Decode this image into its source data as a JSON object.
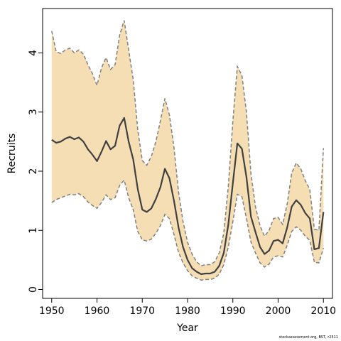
{
  "chart_data": {
    "type": "area",
    "xlabel": "Year",
    "ylabel": "Recruits",
    "xlim": [
      1948,
      2012
    ],
    "ylim": [
      -0.15,
      4.75
    ],
    "xticks": [
      1950,
      1960,
      1970,
      1980,
      1990,
      2000,
      2010
    ],
    "yticks": [
      0,
      1,
      2,
      3,
      4
    ],
    "grid": false,
    "legend": "none",
    "colors": {
      "band": "#f5deb3",
      "bounds": "#808080",
      "line": "#404040"
    },
    "credit": "stockassessment.org, BST, r2511",
    "x": [
      1950,
      1951,
      1952,
      1953,
      1954,
      1955,
      1956,
      1957,
      1958,
      1959,
      1960,
      1961,
      1962,
      1963,
      1964,
      1965,
      1966,
      1967,
      1968,
      1969,
      1970,
      1971,
      1972,
      1973,
      1974,
      1975,
      1976,
      1977,
      1978,
      1979,
      1980,
      1981,
      1982,
      1983,
      1984,
      1985,
      1986,
      1987,
      1988,
      1989,
      1990,
      1991,
      1992,
      1993,
      1994,
      1995,
      1996,
      1997,
      1998,
      1999,
      2000,
      2001,
      2002,
      2003,
      2004,
      2005,
      2006,
      2007,
      2008,
      2009,
      2010
    ],
    "series": [
      {
        "values": [
          2.53,
          2.48,
          2.5,
          2.55,
          2.58,
          2.54,
          2.57,
          2.5,
          2.37,
          2.28,
          2.17,
          2.33,
          2.51,
          2.37,
          2.43,
          2.77,
          2.9,
          2.5,
          2.2,
          1.7,
          1.35,
          1.31,
          1.37,
          1.53,
          1.73,
          2.04,
          1.88,
          1.5,
          1.05,
          0.72,
          0.5,
          0.36,
          0.3,
          0.26,
          0.27,
          0.27,
          0.3,
          0.4,
          0.62,
          1.1,
          1.8,
          2.47,
          2.38,
          1.9,
          1.23,
          0.97,
          0.72,
          0.6,
          0.66,
          0.82,
          0.84,
          0.78,
          1.05,
          1.4,
          1.51,
          1.43,
          1.29,
          1.2,
          0.68,
          0.7,
          1.31
        ]
      },
      {
        "values": [
          4.37,
          4.02,
          3.99,
          4.05,
          4.08,
          4.0,
          4.05,
          3.98,
          3.8,
          3.65,
          3.45,
          3.75,
          3.92,
          3.72,
          3.8,
          4.3,
          4.55,
          4.05,
          3.55,
          2.7,
          2.18,
          2.1,
          2.25,
          2.5,
          2.85,
          3.23,
          2.95,
          2.4,
          1.65,
          1.15,
          0.8,
          0.6,
          0.47,
          0.4,
          0.42,
          0.42,
          0.47,
          0.62,
          0.95,
          1.75,
          2.85,
          3.77,
          3.62,
          3.0,
          1.95,
          1.4,
          1.08,
          0.9,
          1.0,
          1.2,
          1.22,
          1.1,
          1.45,
          1.97,
          2.14,
          2.04,
          1.84,
          1.69,
          1.02,
          1.0,
          2.39
        ]
      },
      {
        "values": [
          1.47,
          1.52,
          1.55,
          1.58,
          1.61,
          1.6,
          1.62,
          1.57,
          1.48,
          1.42,
          1.37,
          1.47,
          1.6,
          1.52,
          1.55,
          1.76,
          1.85,
          1.55,
          1.35,
          0.98,
          0.84,
          0.82,
          0.85,
          0.95,
          1.08,
          1.27,
          1.2,
          0.93,
          0.63,
          0.45,
          0.32,
          0.23,
          0.19,
          0.16,
          0.17,
          0.17,
          0.19,
          0.26,
          0.42,
          0.72,
          1.15,
          1.61,
          1.57,
          1.2,
          0.8,
          0.62,
          0.45,
          0.38,
          0.43,
          0.55,
          0.57,
          0.55,
          0.75,
          0.98,
          1.06,
          1.0,
          0.9,
          0.83,
          0.46,
          0.45,
          0.7
        ]
      }
    ]
  }
}
